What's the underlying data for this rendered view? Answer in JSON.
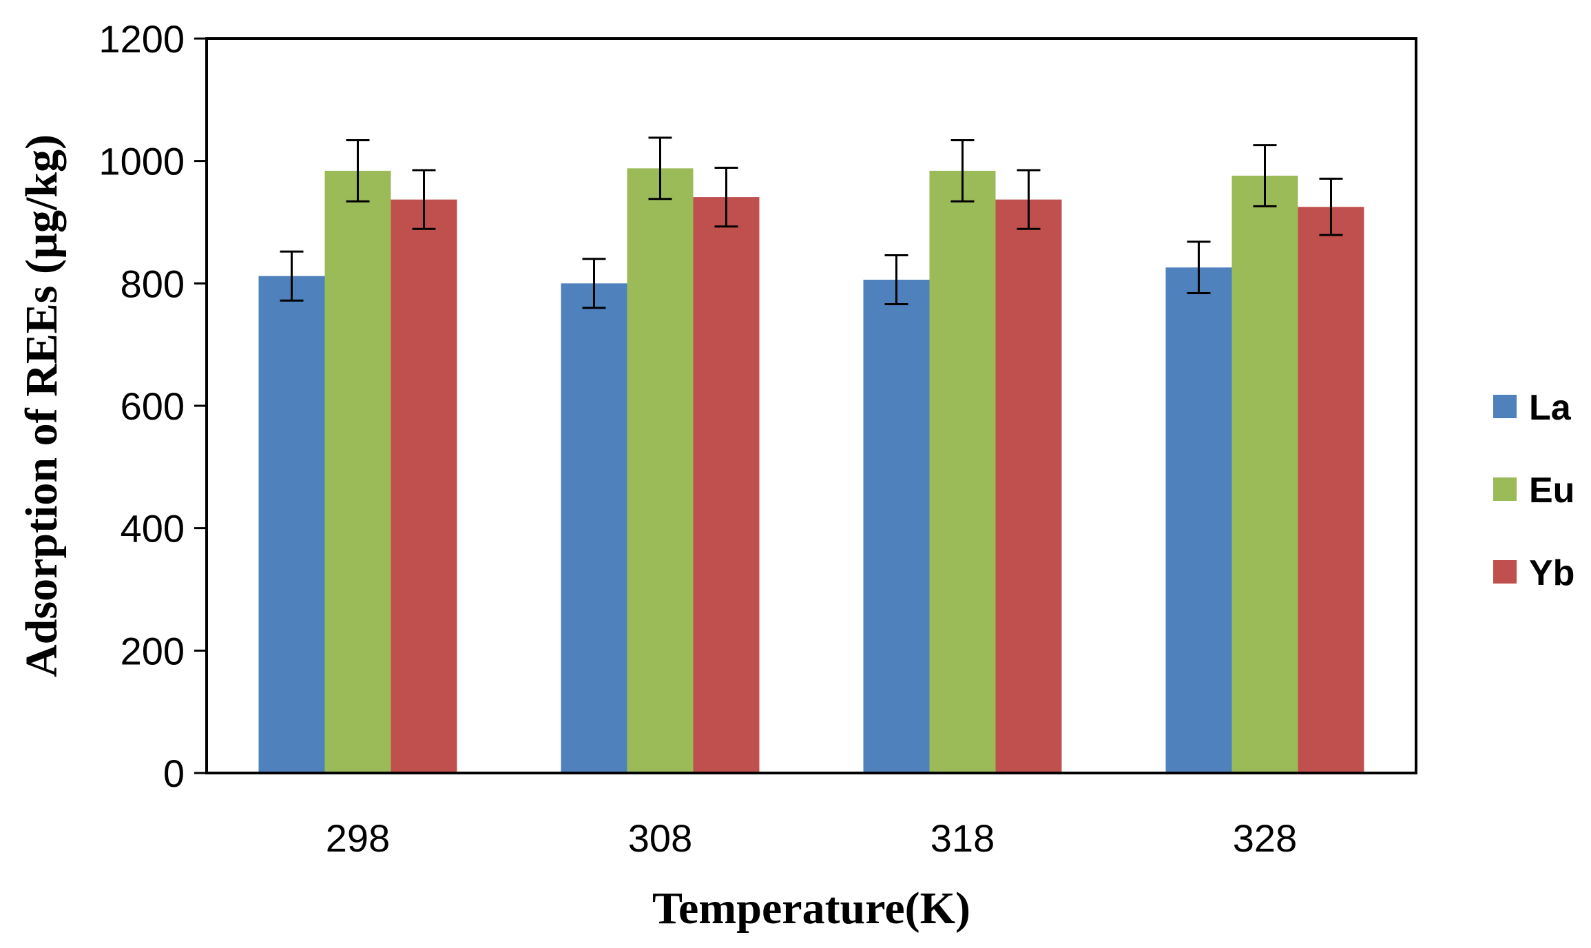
{
  "chart_data": {
    "type": "bar",
    "title": "",
    "xlabel": "Temperature(K)",
    "ylabel": "Adsorption of REEs (µg/kg)",
    "categories": [
      "298",
      "308",
      "318",
      "328"
    ],
    "ylim": [
      0,
      1200
    ],
    "yticks": [
      0,
      200,
      400,
      600,
      800,
      1000,
      1200
    ],
    "legend_position": "right",
    "grid": false,
    "series": [
      {
        "name": "La",
        "color": "#4F81BD",
        "values": [
          812,
          800,
          806,
          826
        ],
        "errors": [
          40,
          40,
          40,
          42
        ]
      },
      {
        "name": "Eu",
        "color": "#9BBB59",
        "values": [
          984,
          988,
          984,
          976
        ],
        "errors": [
          50,
          50,
          50,
          50
        ]
      },
      {
        "name": "Yb",
        "color": "#C0504D",
        "values": [
          937,
          941,
          937,
          925
        ],
        "errors": [
          48,
          48,
          48,
          46
        ]
      }
    ]
  }
}
